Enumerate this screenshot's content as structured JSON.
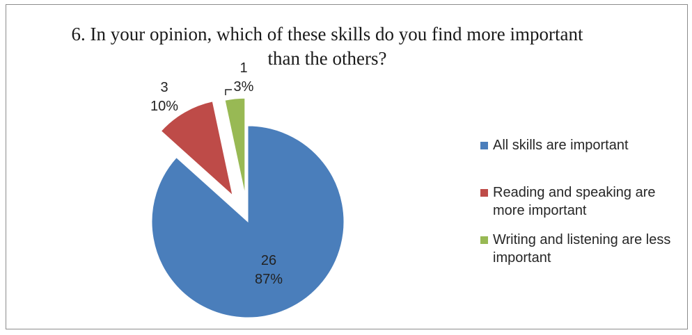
{
  "chart_data": {
    "type": "pie",
    "title": "6. In your opinion, which of these skills do you find more important than the others?",
    "categories": [
      "All skills are important",
      "Reading and speaking are more important",
      "Writing and listening are less important"
    ],
    "values": [
      26,
      3,
      1
    ],
    "percent_labels": [
      "87%",
      "10%",
      "3%"
    ],
    "colors": [
      "#4a7ebb",
      "#be4b48",
      "#98b954"
    ],
    "exploded": true,
    "legend_position": "right"
  }
}
